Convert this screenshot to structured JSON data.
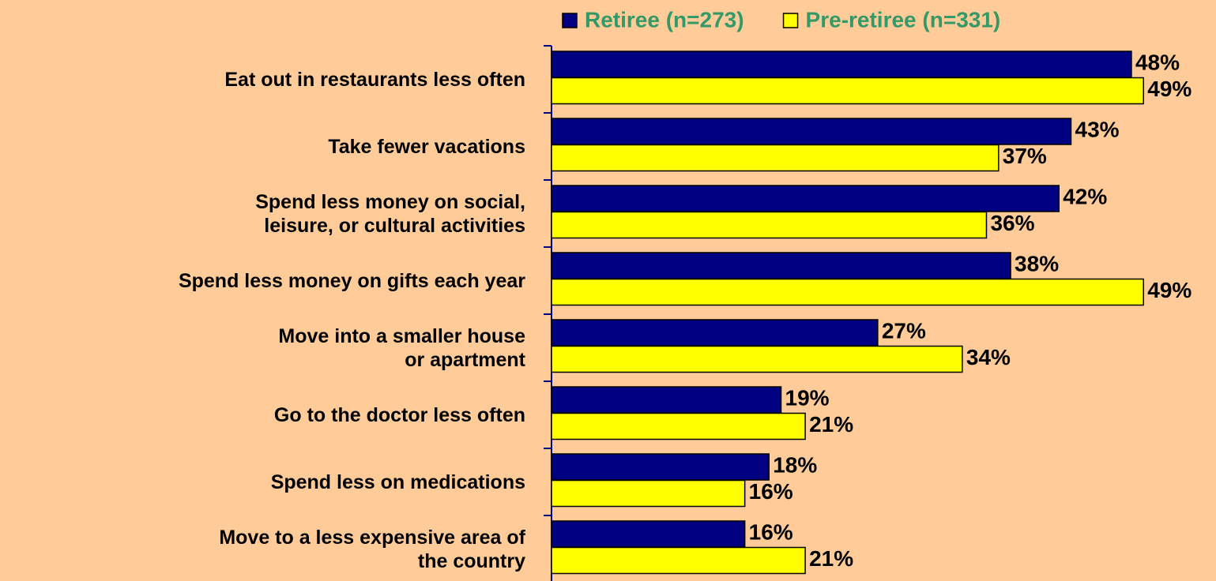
{
  "chart_data": {
    "type": "hbar",
    "categories": [
      "Eat out in restaurants less often",
      "Take fewer vacations",
      "Spend less money on social,\nleisure, or cultural activities",
      "Spend less money on gifts each year",
      "Move into a smaller house\nor apartment",
      "Go to the doctor less often",
      "Spend less on medications",
      "Move to a less expensive area of\nthe country"
    ],
    "series": [
      {
        "name": "Retiree (n=273)",
        "color": "#000080",
        "values": [
          48,
          43,
          42,
          38,
          27,
          19,
          18,
          16
        ],
        "value_labels": [
          "48%",
          "43%",
          "42%",
          "38%",
          "27%",
          "19%",
          "18%",
          "16%"
        ]
      },
      {
        "name": "Pre-retiree (n=331)",
        "color": "#ffff00",
        "values": [
          49,
          37,
          36,
          49,
          34,
          21,
          16,
          21
        ],
        "value_labels": [
          "49%",
          "37%",
          "36%",
          "49%",
          "34%",
          "21%",
          "16%",
          "21%"
        ]
      }
    ],
    "xlim": [
      0,
      55
    ],
    "legend": "top"
  }
}
